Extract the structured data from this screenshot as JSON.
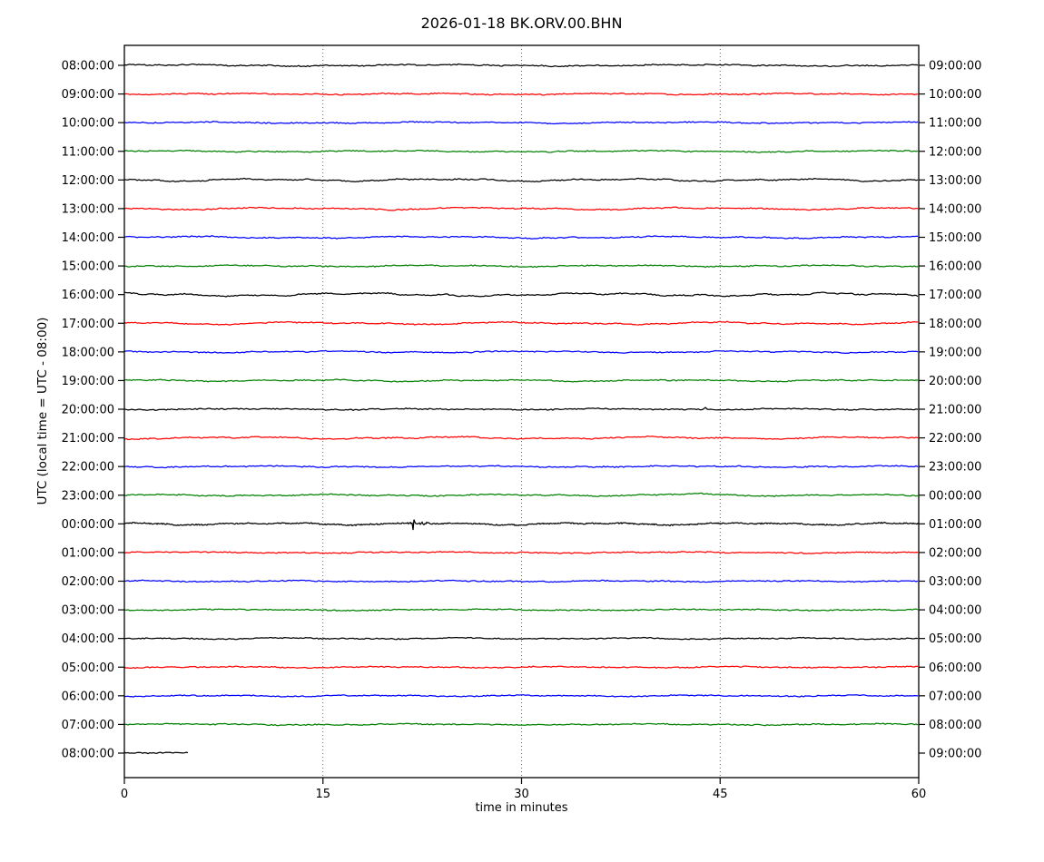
{
  "figure": {
    "title": "2026-01-18 BK.ORV.00.BHN",
    "x_axis_label": "time in minutes",
    "y_axis_label": "UTC (local time = UTC - 08:00)"
  },
  "chart_data": {
    "type": "line",
    "variant": "helicorder-dayplot-seismogram",
    "title": "2026-01-18 BK.ORV.00.BHN",
    "xlabel": "time in minutes",
    "ylabel": "UTC (local time = UTC - 08:00)",
    "xlim": [
      0,
      60
    ],
    "x_ticks": [
      0,
      15,
      30,
      45,
      60
    ],
    "minutes_per_row": 60,
    "grid": {
      "vertical_dotted_at": [
        15,
        30,
        45
      ]
    },
    "color_cycle": [
      "#000000",
      "#ff0000",
      "#0000ff",
      "#008000"
    ],
    "axis_color": "#000000",
    "rows": [
      {
        "utc_start": "08:00:00",
        "utc_end": "09:00:00",
        "color": "#000000",
        "wave": 1.1,
        "span": [
          0,
          60
        ]
      },
      {
        "utc_start": "09:00:00",
        "utc_end": "10:00:00",
        "color": "#ff0000",
        "wave": 0.9,
        "span": [
          0,
          60
        ]
      },
      {
        "utc_start": "10:00:00",
        "utc_end": "11:00:00",
        "color": "#0000ff",
        "wave": 0.9,
        "span": [
          0,
          60
        ]
      },
      {
        "utc_start": "11:00:00",
        "utc_end": "12:00:00",
        "color": "#008000",
        "wave": 0.9,
        "span": [
          0,
          60
        ]
      },
      {
        "utc_start": "12:00:00",
        "utc_end": "13:00:00",
        "color": "#000000",
        "wave": 1.7,
        "span": [
          0,
          60
        ]
      },
      {
        "utc_start": "13:00:00",
        "utc_end": "14:00:00",
        "color": "#ff0000",
        "wave": 1.5,
        "span": [
          0,
          60
        ]
      },
      {
        "utc_start": "14:00:00",
        "utc_end": "15:00:00",
        "color": "#0000ff",
        "wave": 1.3,
        "span": [
          0,
          60
        ]
      },
      {
        "utc_start": "15:00:00",
        "utc_end": "16:00:00",
        "color": "#008000",
        "wave": 1.0,
        "span": [
          0,
          60
        ]
      },
      {
        "utc_start": "16:00:00",
        "utc_end": "17:00:00",
        "color": "#000000",
        "wave": 2.1,
        "span": [
          0,
          60
        ]
      },
      {
        "utc_start": "17:00:00",
        "utc_end": "18:00:00",
        "color": "#ff0000",
        "wave": 1.7,
        "span": [
          0,
          60
        ]
      },
      {
        "utc_start": "18:00:00",
        "utc_end": "19:00:00",
        "color": "#0000ff",
        "wave": 1.1,
        "span": [
          0,
          60
        ]
      },
      {
        "utc_start": "19:00:00",
        "utc_end": "20:00:00",
        "color": "#008000",
        "wave": 1.1,
        "span": [
          0,
          60
        ]
      },
      {
        "utc_start": "20:00:00",
        "utc_end": "21:00:00",
        "color": "#000000",
        "wave": 0.8,
        "span": [
          0,
          60
        ],
        "blip": {
          "minute": 43.9,
          "amp": 2.5
        }
      },
      {
        "utc_start": "21:00:00",
        "utc_end": "22:00:00",
        "color": "#ff0000",
        "wave": 1.5,
        "span": [
          0,
          60
        ]
      },
      {
        "utc_start": "22:00:00",
        "utc_end": "23:00:00",
        "color": "#0000ff",
        "wave": 0.9,
        "span": [
          0,
          60
        ]
      },
      {
        "utc_start": "23:00:00",
        "utc_end": "00:00:00",
        "color": "#008000",
        "wave": 1.1,
        "span": [
          0,
          60
        ],
        "bump": {
          "minute": 43.0,
          "amp": 1.5,
          "width": 1.3
        }
      },
      {
        "utc_start": "00:00:00",
        "utc_end": "01:00:00",
        "color": "#000000",
        "wave": 1.5,
        "span": [
          0,
          60
        ],
        "event": {
          "minute": 21.8,
          "amp": 7,
          "coda_min": 3
        }
      },
      {
        "utc_start": "01:00:00",
        "utc_end": "02:00:00",
        "color": "#ff0000",
        "wave": 0.8,
        "span": [
          0,
          60
        ]
      },
      {
        "utc_start": "02:00:00",
        "utc_end": "03:00:00",
        "color": "#0000ff",
        "wave": 0.8,
        "span": [
          0,
          60
        ]
      },
      {
        "utc_start": "03:00:00",
        "utc_end": "04:00:00",
        "color": "#008000",
        "wave": 0.8,
        "span": [
          0,
          60
        ]
      },
      {
        "utc_start": "04:00:00",
        "utc_end": "05:00:00",
        "color": "#000000",
        "wave": 0.9,
        "span": [
          0,
          60
        ]
      },
      {
        "utc_start": "05:00:00",
        "utc_end": "06:00:00",
        "color": "#ff0000",
        "wave": 0.8,
        "span": [
          0,
          60
        ]
      },
      {
        "utc_start": "06:00:00",
        "utc_end": "07:00:00",
        "color": "#0000ff",
        "wave": 0.8,
        "span": [
          0,
          60
        ]
      },
      {
        "utc_start": "07:00:00",
        "utc_end": "08:00:00",
        "color": "#008000",
        "wave": 0.8,
        "span": [
          0,
          60
        ]
      },
      {
        "utc_start": "08:00:00",
        "utc_end": "09:00:00",
        "color": "#000000",
        "wave": 0.7,
        "span": [
          0,
          4.8
        ]
      }
    ]
  }
}
